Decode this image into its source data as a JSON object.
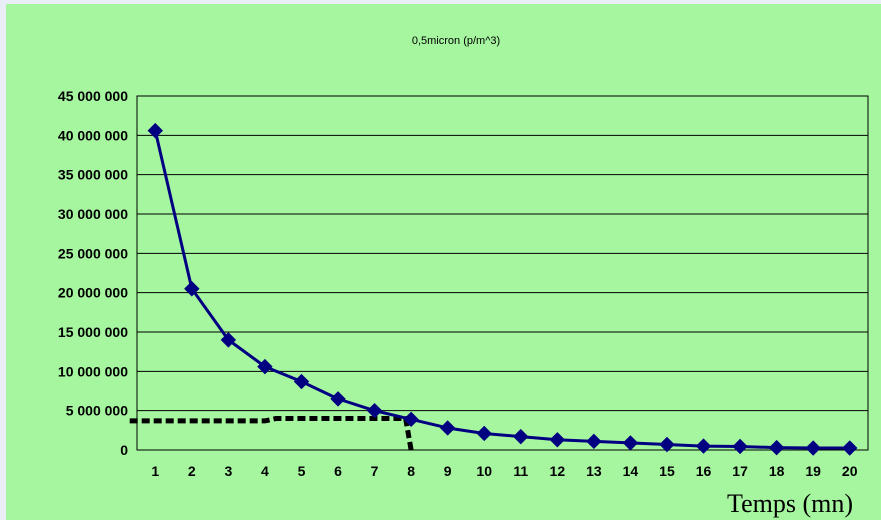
{
  "chart_data": {
    "type": "line",
    "title": "0,5micron (p/m^3)",
    "xlabel": "Temps (mn)",
    "ylabel": "",
    "categories": [
      "1",
      "2",
      "3",
      "4",
      "5",
      "6",
      "7",
      "8",
      "9",
      "10",
      "11",
      "12",
      "13",
      "14",
      "15",
      "16",
      "17",
      "18",
      "19",
      "20"
    ],
    "series": [
      {
        "name": "",
        "values": [
          40600000,
          20500000,
          14000000,
          10600000,
          8700000,
          6500000,
          5000000,
          3900000,
          2800000,
          2100000,
          1700000,
          1300000,
          1100000,
          900000,
          700000,
          500000,
          450000,
          300000,
          250000,
          250000
        ],
        "color": "#000080",
        "marker": "diamond"
      }
    ],
    "reference_line": {
      "style": "dotted",
      "color": "#000000",
      "x_values": [
        0.3,
        4,
        4.3,
        7.85,
        8
      ],
      "y_values": [
        3700000,
        3700000,
        4000000,
        4000000,
        0
      ]
    },
    "ylim": [
      0,
      45000000
    ],
    "yticks": [
      "0",
      "5 000 000",
      "10 000 000",
      "15 000 000",
      "20 000 000",
      "25 000 000",
      "30 000 000",
      "35 000 000",
      "40 000 000",
      "45 000 000"
    ],
    "ytick_values": [
      0,
      5000000,
      10000000,
      15000000,
      20000000,
      25000000,
      30000000,
      35000000,
      40000000,
      45000000
    ],
    "grid": "horizontal",
    "legend": "none",
    "colors": {
      "chart_background": "#a6f6a0",
      "plot_background": "#a6f6a0",
      "page_background": "#e9eef6",
      "gridline": "#000000",
      "series": "#000080"
    }
  }
}
